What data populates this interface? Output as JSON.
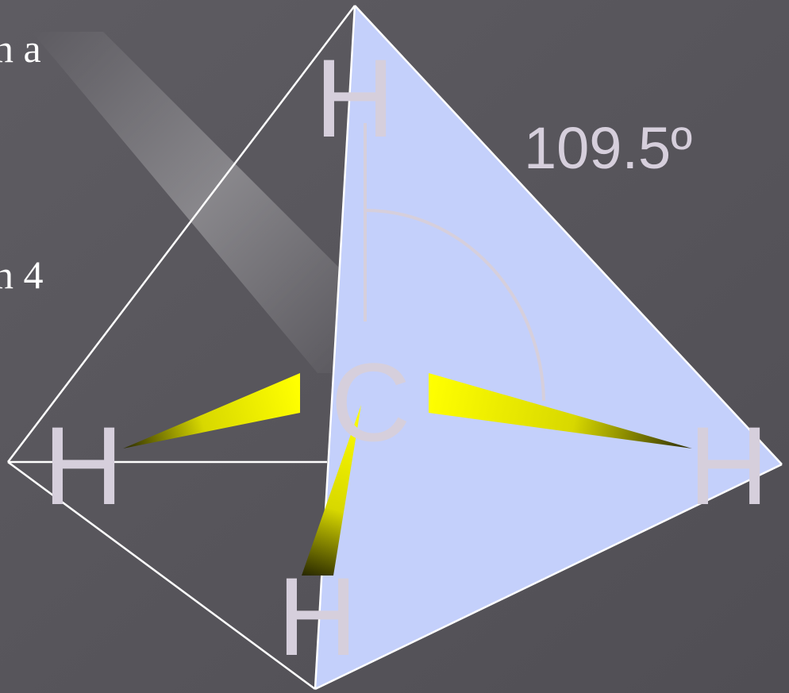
{
  "slide": {
    "text_fragments": [
      "n a",
      "n 4"
    ],
    "angle_label": "109.5º"
  },
  "molecule": {
    "center_atom": "C",
    "atoms": {
      "top": "H",
      "left": "H",
      "right": "H",
      "bottom": "H"
    }
  },
  "colors": {
    "background": "#58565b",
    "face_fill": "#c4d0fb",
    "edge": "#ffffff",
    "label": "#d6cfdc",
    "wedge_light": "#ffff00",
    "wedge_dark": "#2a2a00",
    "angle_arc": "#d6cfdc"
  }
}
